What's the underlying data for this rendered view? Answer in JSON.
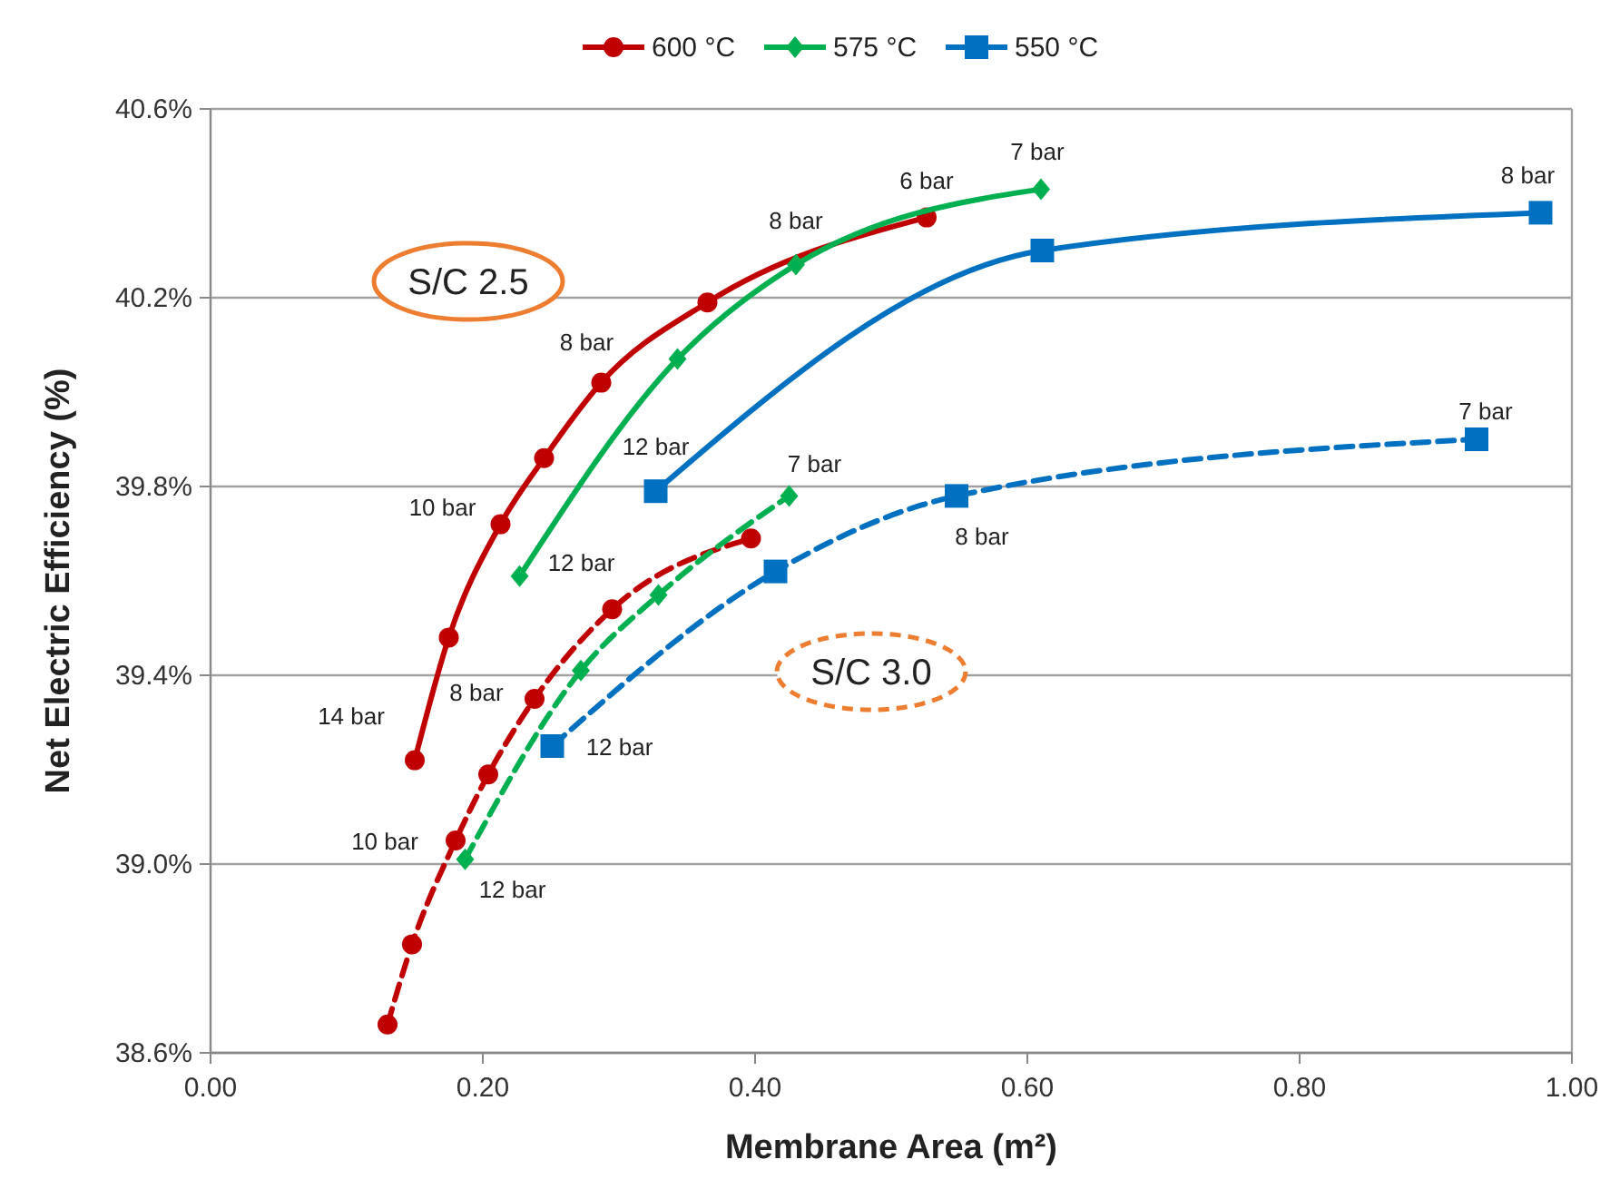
{
  "chart_data": {
    "type": "line",
    "xlabel": "Membrane Area (m²)",
    "ylabel": "Net Electric Efficiency (%)",
    "xlim": [
      0,
      1
    ],
    "xticks": [
      {
        "value": 0,
        "label": "0.00"
      },
      {
        "value": 0.2,
        "label": "0.20"
      },
      {
        "value": 0.4,
        "label": "0.40"
      },
      {
        "value": 0.6,
        "label": "0.60"
      },
      {
        "value": 0.8,
        "label": "0.80"
      },
      {
        "value": 1,
        "label": "1.00"
      }
    ],
    "ylim": [
      38.6,
      40.6
    ],
    "yticks": [
      {
        "value": 38.6,
        "label": "38.6%"
      },
      {
        "value": 39.0,
        "label": "39.0%"
      },
      {
        "value": 39.4,
        "label": "39.4%"
      },
      {
        "value": 39.8,
        "label": "39.8%"
      },
      {
        "value": 40.2,
        "label": "40.2%"
      },
      {
        "value": 40.6,
        "label": "40.6%"
      }
    ],
    "grid": "y",
    "legend": "top",
    "series": [
      {
        "name": "600 °C",
        "color": "#c00000",
        "marker": "circle",
        "line_style": "solid",
        "x": [
          0.15,
          0.175,
          0.213,
          0.245,
          0.287,
          0.365,
          0.526
        ],
        "values": [
          39.22,
          39.48,
          39.72,
          39.86,
          40.02,
          40.19,
          40.37
        ]
      },
      {
        "name": "575 °C",
        "color": "#00b050",
        "marker": "diamond",
        "line_style": "solid",
        "x": [
          0.227,
          0.343,
          0.43,
          0.61
        ],
        "values": [
          39.61,
          40.07,
          40.27,
          40.43
        ]
      },
      {
        "name": "550 °C",
        "color": "#0070c0",
        "marker": "square",
        "line_style": "solid",
        "x": [
          0.327,
          0.611,
          0.977
        ],
        "values": [
          39.79,
          40.3,
          40.38
        ]
      },
      {
        "color": "#c00000",
        "marker": "circle",
        "line_style": "dashed",
        "x": [
          0.13,
          0.148,
          0.18,
          0.204,
          0.238,
          0.295,
          0.397
        ],
        "values": [
          38.66,
          38.83,
          39.05,
          39.19,
          39.35,
          39.54,
          39.69
        ]
      },
      {
        "color": "#00b050",
        "marker": "diamond",
        "line_style": "dashed",
        "x": [
          0.187,
          0.272,
          0.329,
          0.425
        ],
        "values": [
          39.01,
          39.41,
          39.57,
          39.78
        ]
      },
      {
        "color": "#0070c0",
        "marker": "square",
        "line_style": "dashed",
        "x": [
          0.251,
          0.415,
          0.548,
          0.93
        ],
        "values": [
          39.25,
          39.62,
          39.78,
          39.9
        ]
      }
    ],
    "annotations": [
      {
        "text": "14 bar",
        "x": 0.15,
        "y": 39.22
      },
      {
        "text": "10 bar",
        "x": 0.213,
        "y": 39.72
      },
      {
        "text": "8 bar",
        "x": 0.287,
        "y": 40.02
      },
      {
        "text": "6 bar",
        "x": 0.526,
        "y": 40.37
      },
      {
        "text": "12 bar",
        "x": 0.227,
        "y": 39.61
      },
      {
        "text": "8 bar",
        "x": 0.43,
        "y": 40.27
      },
      {
        "text": "7 bar",
        "x": 0.61,
        "y": 40.43
      },
      {
        "text": "12 bar",
        "x": 0.327,
        "y": 39.79
      },
      {
        "text": "8 bar",
        "x": 0.977,
        "y": 40.38
      },
      {
        "text": "10 bar",
        "x": 0.18,
        "y": 39.05
      },
      {
        "text": "8 bar",
        "x": 0.238,
        "y": 39.35
      },
      {
        "text": "12 bar",
        "x": 0.187,
        "y": 39.01
      },
      {
        "text": "7 bar",
        "x": 0.425,
        "y": 39.78
      },
      {
        "text": "12 bar",
        "x": 0.251,
        "y": 39.25
      },
      {
        "text": "8 bar",
        "x": 0.548,
        "y": 39.78
      },
      {
        "text": "7 bar",
        "x": 0.93,
        "y": 39.9
      },
      "S/C 2.5",
      "S/C 3.0"
    ]
  }
}
